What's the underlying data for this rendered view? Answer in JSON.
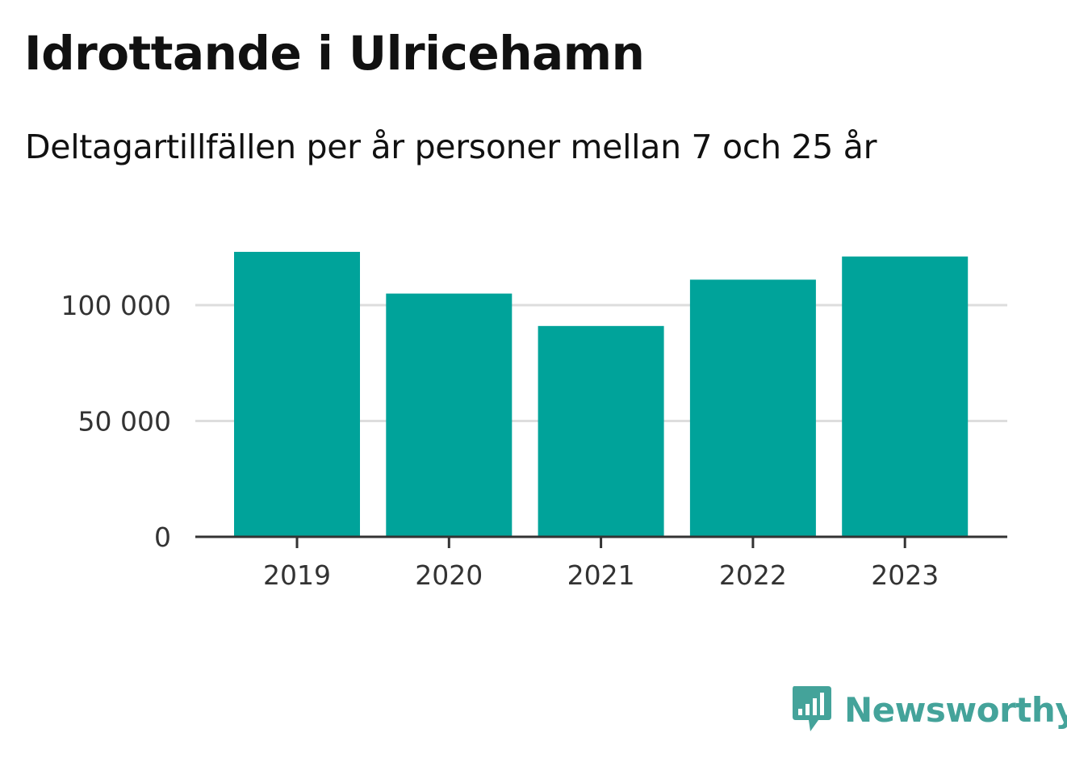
{
  "title": "Idrottande i Ulricehamn",
  "subtitle": "Deltagartillfällen per år personer mellan 7 och 25 år",
  "brand": {
    "name": "Newsworthy",
    "color": "#44a39a"
  },
  "colors": {
    "bar": "#00a39a",
    "grid": "#dddddd",
    "axis": "#333333"
  },
  "chart_data": {
    "type": "bar",
    "title": "Idrottande i Ulricehamn",
    "subtitle": "Deltagartillfällen per år personer mellan 7 och 25 år",
    "categories": [
      "2019",
      "2020",
      "2021",
      "2022",
      "2023"
    ],
    "values": [
      123000,
      105000,
      91000,
      111000,
      121000
    ],
    "ylim": [
      0,
      130000
    ],
    "yticks": [
      0,
      50000,
      100000
    ],
    "ytick_labels": [
      "0",
      "50 000",
      "100 000"
    ],
    "grid": true,
    "xlabel": "",
    "ylabel": ""
  }
}
